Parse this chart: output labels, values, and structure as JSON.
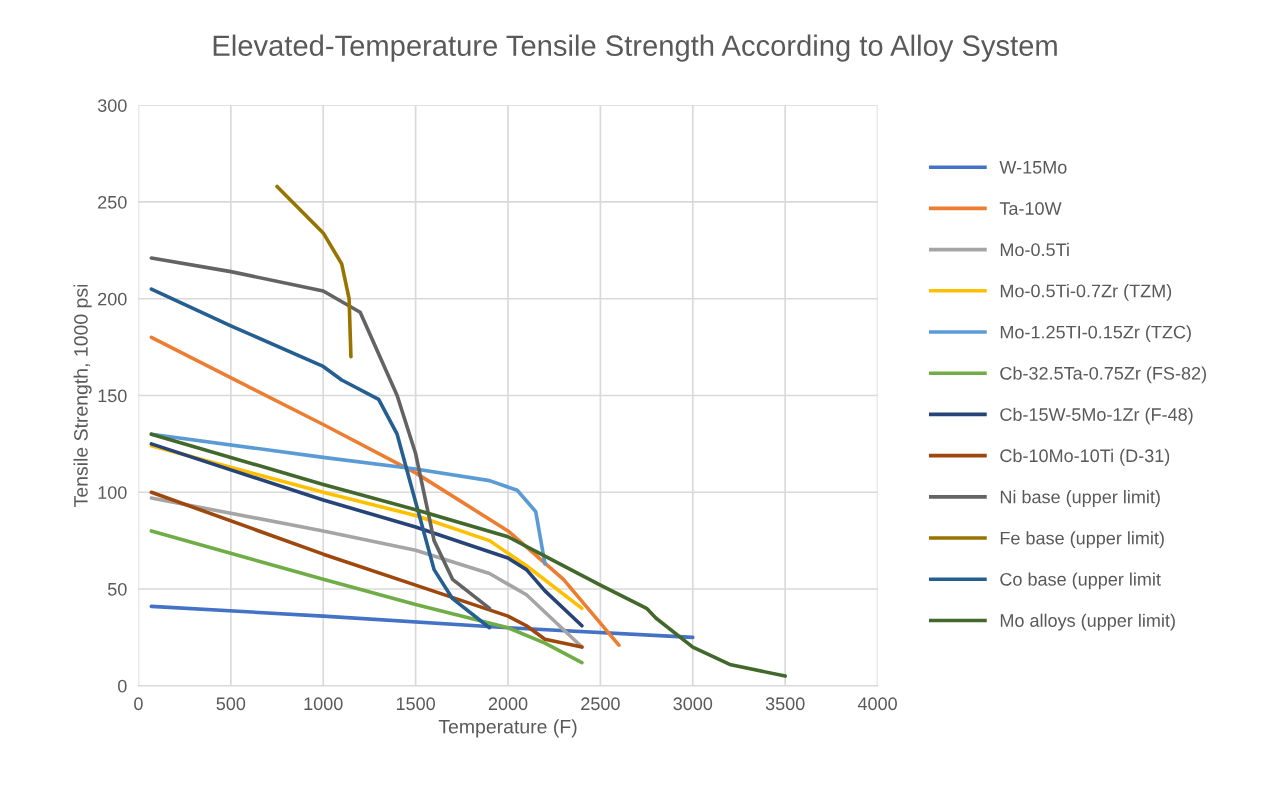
{
  "chart_data": {
    "type": "line",
    "title": "Elevated-Temperature Tensile Strength According to Alloy System",
    "xlabel": "Temperature (F)",
    "ylabel": "Tensile Strength, 1000 psi",
    "xlim": [
      0,
      4000
    ],
    "xticks": [
      0,
      500,
      1000,
      1500,
      2000,
      2500,
      3000,
      3500,
      4000
    ],
    "ylim": [
      0,
      300
    ],
    "yticks": [
      0,
      50,
      100,
      150,
      200,
      250,
      300
    ],
    "grid": true,
    "legend": "right",
    "marker": "none",
    "line_style": "solid",
    "series": [
      {
        "name": "W-15Mo",
        "color": "#4472c4",
        "x": [
          70,
          1000,
          2000,
          3000
        ],
        "values": [
          41,
          36,
          30,
          25
        ]
      },
      {
        "name": "Ta-10W",
        "color": "#ed7d31",
        "x": [
          70,
          1000,
          1500,
          2000,
          2300,
          2600
        ],
        "values": [
          180,
          135,
          110,
          80,
          55,
          21
        ]
      },
      {
        "name": "Mo-0.5Ti",
        "color": "#a5a5a5",
        "x": [
          70,
          1000,
          1500,
          1900,
          2100,
          2400
        ],
        "values": [
          97,
          80,
          70,
          58,
          47,
          20
        ]
      },
      {
        "name": "Mo-0.5Ti-0.7Zr (TZM)",
        "color": "#ffc000",
        "x": [
          70,
          1000,
          1500,
          1900,
          2100,
          2400
        ],
        "values": [
          124,
          100,
          88,
          75,
          62,
          40
        ]
      },
      {
        "name": "Mo-1.25TI-0.15Zr (TZC)",
        "color": "#5b9bd5",
        "x": [
          70,
          1000,
          1500,
          1900,
          2050,
          2150,
          2200
        ],
        "values": [
          130,
          118,
          112,
          106,
          101,
          90,
          63
        ]
      },
      {
        "name": "Cb-32.5Ta-0.75Zr (FS-82)",
        "color": "#70ad47",
        "x": [
          70,
          1000,
          1500,
          2000,
          2200,
          2400
        ],
        "values": [
          80,
          55,
          42,
          30,
          22,
          12
        ]
      },
      {
        "name": "Cb-15W-5Mo-1Zr (F-48)",
        "color": "#264478",
        "x": [
          70,
          1000,
          1500,
          2000,
          2100,
          2200,
          2400
        ],
        "values": [
          125,
          96,
          82,
          66,
          60,
          49,
          31
        ]
      },
      {
        "name": "Cb-10Mo-10Ti (D-31)",
        "color": "#9e480e",
        "x": [
          70,
          1000,
          1500,
          2000,
          2100,
          2200,
          2400
        ],
        "values": [
          100,
          68,
          52,
          36,
          31,
          24,
          20
        ]
      },
      {
        "name": "Ni base (upper limit)",
        "color": "#636363",
        "x": [
          70,
          500,
          1000,
          1200,
          1400,
          1500,
          1600,
          1700,
          1900
        ],
        "values": [
          221,
          214,
          204,
          193,
          150,
          120,
          75,
          55,
          40
        ]
      },
      {
        "name": "Fe base (upper limit)",
        "color": "#997300",
        "x": [
          750,
          1000,
          1100,
          1140,
          1150
        ],
        "values": [
          258,
          234,
          218,
          200,
          170
        ]
      },
      {
        "name": "Co base (upper limit",
        "color": "#255e91",
        "x": [
          70,
          500,
          1000,
          1100,
          1300,
          1400,
          1500,
          1600,
          1700,
          1900
        ],
        "values": [
          205,
          186,
          165,
          158,
          148,
          130,
          95,
          60,
          45,
          30
        ]
      },
      {
        "name": "Mo alloys (upper limit)",
        "color": "#43682b",
        "x": [
          70,
          1000,
          1500,
          2000,
          2200,
          2500,
          2750,
          2800,
          3000,
          3200,
          3500
        ],
        "values": [
          130,
          104,
          91,
          77,
          67,
          52,
          40,
          35,
          20,
          11,
          5
        ]
      }
    ]
  }
}
